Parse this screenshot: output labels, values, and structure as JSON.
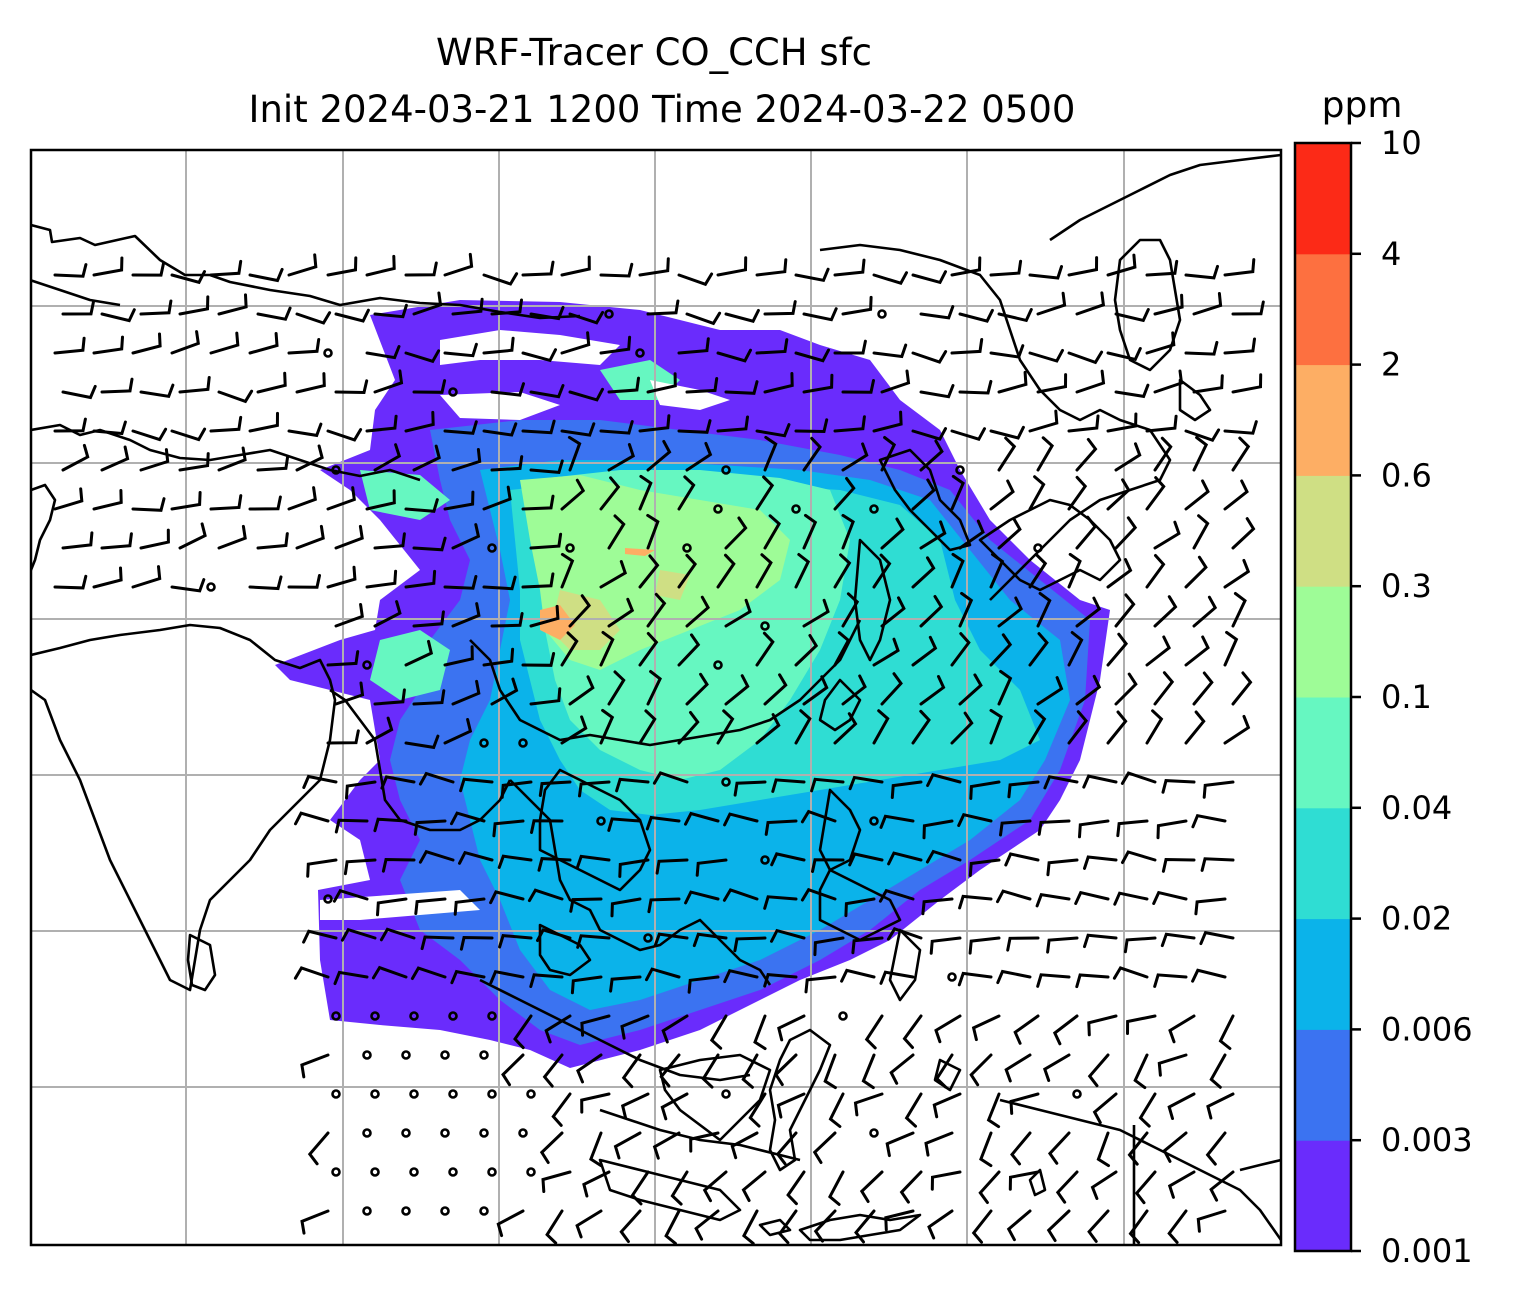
{
  "title": {
    "line1": "WRF-Tracer CO_CCH sfc",
    "line2": "Init 2024-03-21 1200 Time 2024-03-22 0500"
  },
  "colorbar": {
    "unit": "ppm",
    "levels": [
      "0.001",
      "0.003",
      "0.006",
      "0.02",
      "0.04",
      "0.1",
      "0.3",
      "0.6",
      "2",
      "4",
      "10"
    ],
    "colors": [
      "#6a2cfc",
      "#3b73f1",
      "#0bb3ea",
      "#2fddd3",
      "#66f7c1",
      "#9efc97",
      "#cfdf84",
      "#fdae64",
      "#fd7040",
      "#fc2a17"
    ]
  },
  "map": {
    "field": "CO_CCH surface tracer concentration",
    "overlay": "wind barbs",
    "gridlines": true
  }
}
